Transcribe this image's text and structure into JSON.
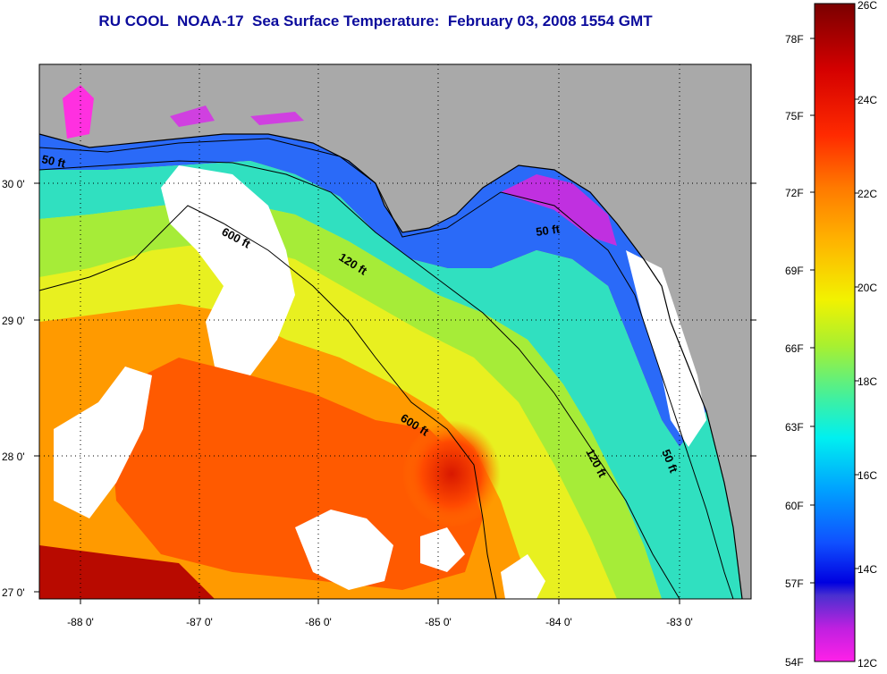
{
  "title": "RU COOL  NOAA-17  Sea Surface Temperature:  February 03, 2008 1554 GMT",
  "map": {
    "lat_ticks": [
      "30 0'",
      "29 0'",
      "28 0'",
      "27 0'"
    ],
    "lon_ticks": [
      "-88 0'",
      "-87 0'",
      "-86 0'",
      "-85 0'",
      "-84 0'",
      "-83 0'"
    ],
    "contour_labels": [
      "50 ft",
      "600 ft",
      "120 ft",
      "50 ft",
      "600 ft",
      "120 ft",
      "50 ft"
    ]
  },
  "colorbar": {
    "fahrenheit_labels": [
      "78F",
      "75F",
      "72F",
      "69F",
      "66F",
      "63F",
      "60F",
      "57F",
      "54F"
    ],
    "celsius_labels": [
      "26C",
      "24C",
      "22C",
      "20C",
      "18C",
      "16C",
      "14C",
      "12C"
    ]
  },
  "colors": {
    "land": "#a9a9a9",
    "title": "#0b0b9c",
    "cloud": "#ffffff"
  }
}
